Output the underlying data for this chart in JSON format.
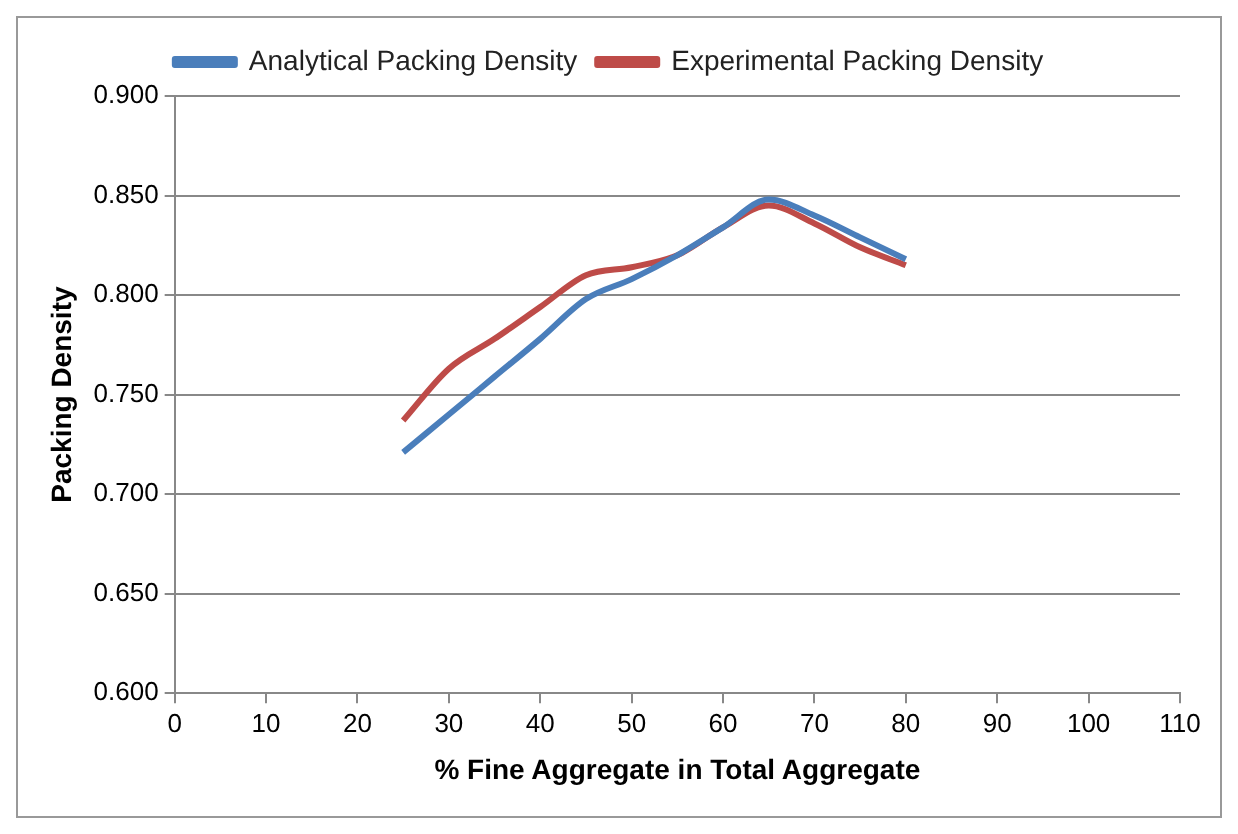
{
  "chart_data": {
    "type": "line",
    "xlabel": "% Fine Aggregate in Total Aggregate",
    "ylabel": "Packing Density",
    "x": [
      25,
      30,
      35,
      40,
      45,
      50,
      55,
      60,
      65,
      70,
      75,
      80
    ],
    "series": [
      {
        "name": "Analytical Packing Density",
        "color": "#4a7ebb",
        "values": [
          0.721,
          0.74,
          0.759,
          0.778,
          0.798,
          0.808,
          0.82,
          0.834,
          0.848,
          0.84,
          0.829,
          0.818
        ]
      },
      {
        "name": "Experimental Packing Density",
        "color": "#be4b48",
        "values": [
          0.737,
          0.763,
          0.778,
          0.794,
          0.81,
          0.814,
          0.82,
          0.834,
          0.845,
          0.836,
          0.824,
          0.815
        ]
      }
    ],
    "xlim": [
      0,
      110
    ],
    "xticks": [
      0,
      10,
      20,
      30,
      40,
      50,
      60,
      70,
      80,
      90,
      100,
      110
    ],
    "ylim": [
      0.6,
      0.9
    ],
    "yticks": [
      {
        "value": 0.6,
        "label": "0.600"
      },
      {
        "value": 0.65,
        "label": "0.650"
      },
      {
        "value": 0.7,
        "label": "0.700"
      },
      {
        "value": 0.75,
        "label": "0.750"
      },
      {
        "value": 0.8,
        "label": "0.800"
      },
      {
        "value": 0.85,
        "label": "0.850"
      },
      {
        "value": 0.9,
        "label": "0.900"
      }
    ],
    "grid": "y",
    "legend": "top",
    "marker": "none",
    "line_style": "solid"
  }
}
